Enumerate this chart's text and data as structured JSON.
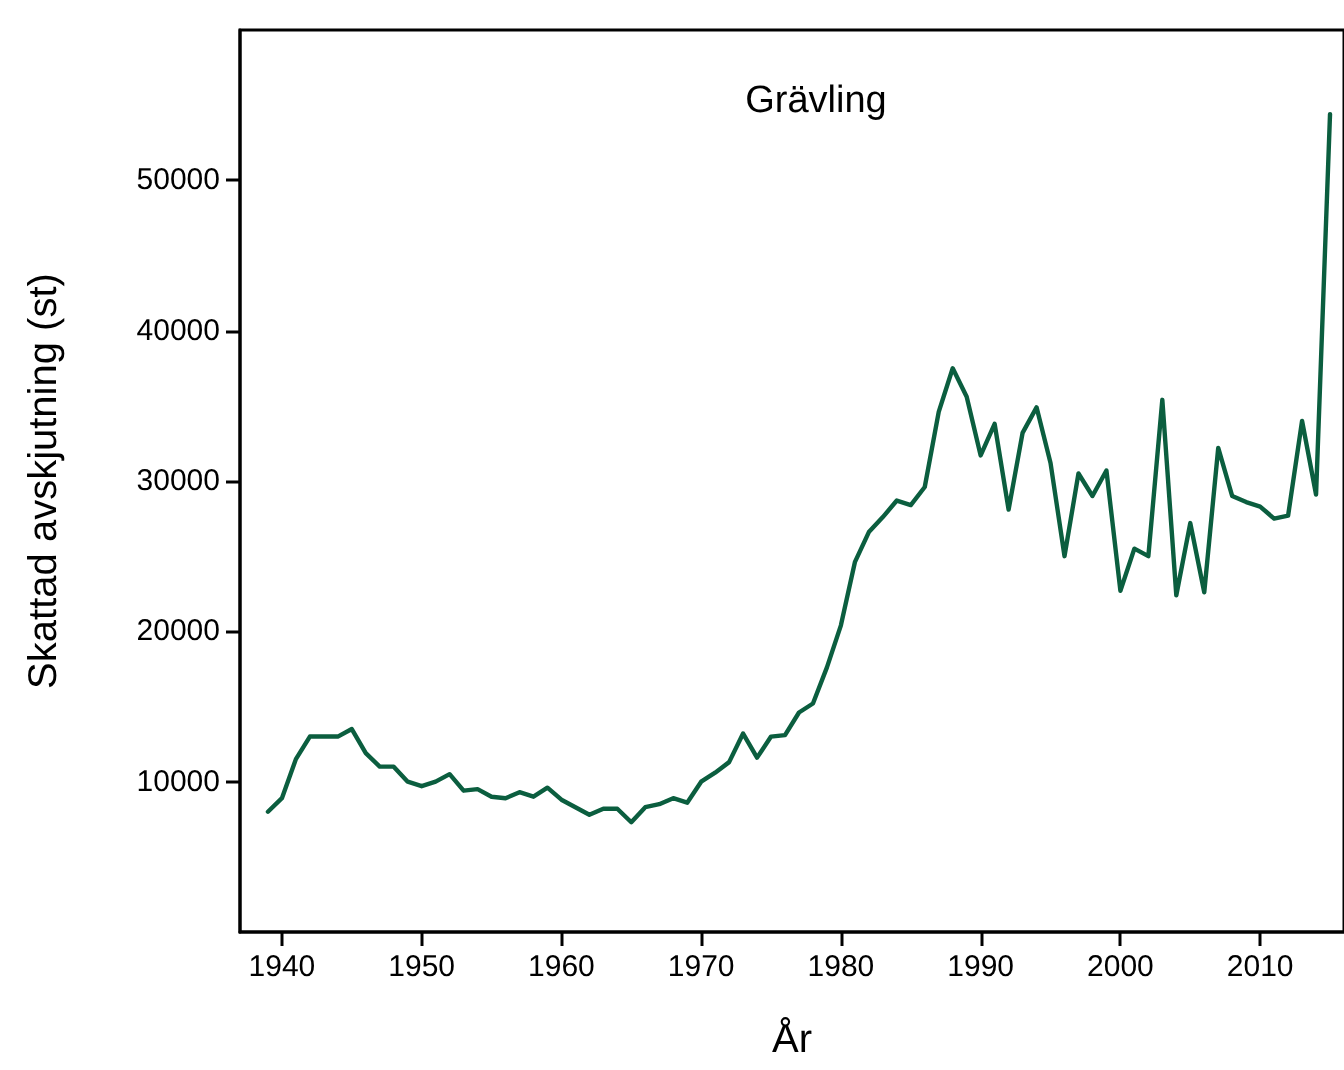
{
  "chart_data": {
    "type": "line",
    "title": "Grävling",
    "xlabel": "År",
    "ylabel": "Skattad avskjutning (st)",
    "x": [
      1939,
      1940,
      1941,
      1942,
      1943,
      1944,
      1945,
      1946,
      1947,
      1948,
      1949,
      1950,
      1951,
      1952,
      1953,
      1954,
      1955,
      1956,
      1957,
      1958,
      1959,
      1960,
      1961,
      1962,
      1963,
      1964,
      1965,
      1966,
      1967,
      1968,
      1969,
      1970,
      1971,
      1972,
      1973,
      1974,
      1975,
      1976,
      1977,
      1978,
      1979,
      1980,
      1981,
      1982,
      1983,
      1984,
      1985,
      1986,
      1987,
      1988,
      1989,
      1990,
      1991,
      1992,
      1993,
      1994,
      1995,
      1996,
      1997,
      1998,
      1999,
      2000,
      2001,
      2002,
      2003,
      2004,
      2005,
      2006,
      2007,
      2008,
      2009,
      2010,
      2011,
      2012,
      2013,
      2014,
      2015
    ],
    "series": [
      {
        "color": "#0b5e3f",
        "values": [
          8000,
          8900,
          11500,
          13000,
          13000,
          13000,
          13500,
          11900,
          11000,
          11000,
          10000,
          9700,
          10000,
          10500,
          9400,
          9500,
          9000,
          8900,
          9300,
          9000,
          9600,
          8800,
          8300,
          7800,
          8200,
          8200,
          7300,
          8300,
          8500,
          8900,
          8600,
          10000,
          10600,
          11300,
          13200,
          11600,
          13000,
          13100,
          14600,
          15200,
          17600,
          20400,
          24600,
          26600,
          27600,
          28700,
          28400,
          29600,
          34600,
          37500,
          35600,
          31700,
          33800,
          28100,
          33200,
          34900,
          31200,
          25000,
          30500,
          29000,
          30700,
          22700,
          25500,
          25000,
          35400,
          22400,
          27200,
          22600,
          32200,
          29000,
          28600,
          28300,
          27500,
          27700,
          34000,
          29100,
          54400
        ]
      }
    ],
    "xlim": [
      1937,
      2016
    ],
    "xticks": [
      1940,
      1950,
      1960,
      1970,
      1980,
      1990,
      2000,
      2010
    ],
    "ylim": [
      0,
      60000
    ],
    "yticks": [
      10000,
      20000,
      30000,
      40000,
      50000
    ],
    "grid": false,
    "marker": "none",
    "line_style": "solid"
  }
}
